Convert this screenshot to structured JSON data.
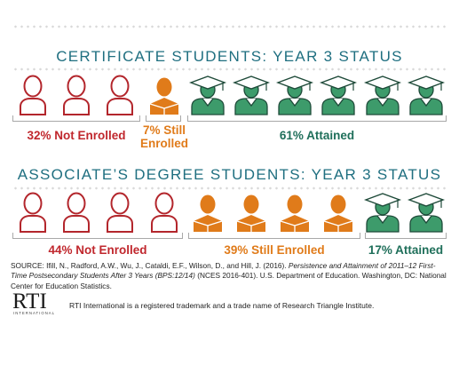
{
  "cert": {
    "title": "CERTIFICATE STUDENTS: YEAR 3 STATUS",
    "not_enrolled_label": "32% Not Enrolled",
    "still_enrolled_label_line1": "7% Still",
    "still_enrolled_label_line2": "Enrolled",
    "attained_label": "61% Attained",
    "icons": [
      "outline",
      "outline",
      "outline",
      "book",
      "cap",
      "cap",
      "cap",
      "cap",
      "cap",
      "cap"
    ]
  },
  "assoc": {
    "title": "ASSOCIATE’S DEGREE STUDENTS: YEAR 3 STATUS",
    "not_enrolled_label": "44% Not Enrolled",
    "still_enrolled_label": "39% Still Enrolled",
    "attained_label": "17% Attained",
    "icons": [
      "outline",
      "outline",
      "outline",
      "outline",
      "book",
      "book",
      "book",
      "book",
      "cap",
      "cap"
    ]
  },
  "source": {
    "prefix": "SOURCE: Ifill, N., Radford, A.W., Wu, J., Cataldi, E.F., Wilson, D., and Hill, J. (2016). ",
    "title_italic": "Persistence and Attainment of 2011–12 First-Time Postsecondary Students After 3 Years (BPS:12/14)",
    "suffix": " (NCES 2016-401). U.S. Department of Education. Washington, DC: National Center for Education Statistics."
  },
  "logo": {
    "main": "RTI",
    "sub": "INTERNATIONAL"
  },
  "trademark": "RTI International is a registered trademark and a trade name of Research Triangle Institute.",
  "colors": {
    "title": "#1f6f80",
    "not_enrolled": "#c0272d",
    "still_enrolled": "#e07b1a",
    "attained": "#1f6f5a",
    "icon_outline": "#b3262c",
    "icon_book": "#e07b1a",
    "icon_cap_body": "#3d9b6b",
    "icon_cap_stroke": "#1e4a39"
  }
}
